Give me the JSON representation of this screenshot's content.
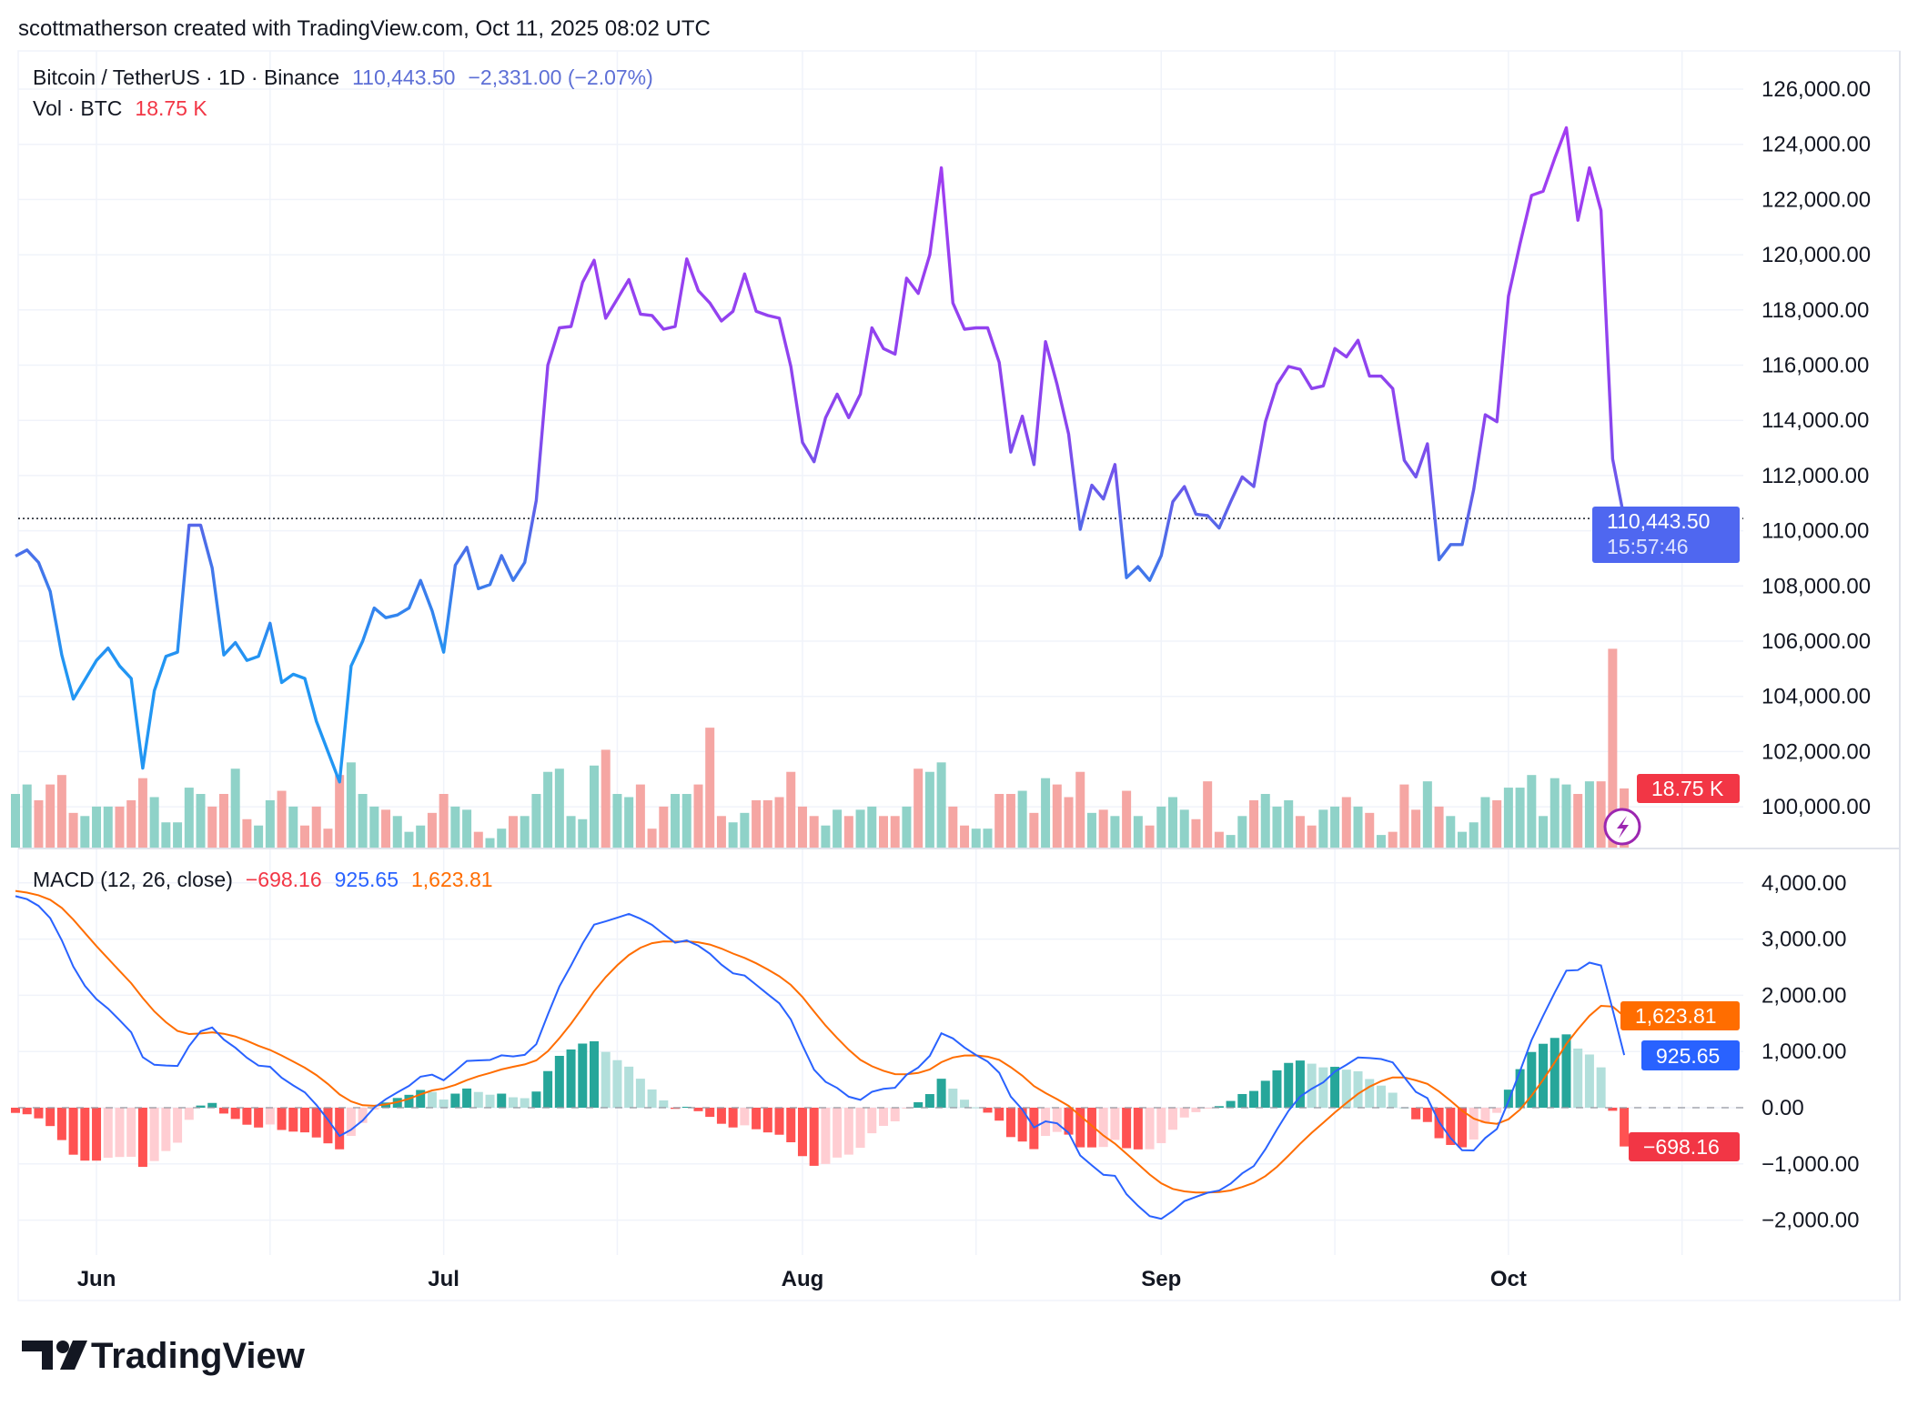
{
  "watermark": "scottmatherson created with TradingView.com, Oct 11, 2025 08:02 UTC",
  "legend": {
    "symbol": "Bitcoin / TetherUS · 1D · Binance",
    "last": "110,443.50",
    "change": "−2,331.00 (−2.07%)",
    "vol_label": "Vol · BTC",
    "vol_value": "18.75 K",
    "macd_label": "MACD (12, 26, close)",
    "macd_hist": "−698.16",
    "macd_value": "925.65",
    "macd_signal": "1,623.81"
  },
  "badges": {
    "price": "110,443.50",
    "countdown": "15:57:46",
    "volume": "18.75 K",
    "signal": "1,623.81",
    "macd": "925.65",
    "hist": "−698.16"
  },
  "logo": "TradingView",
  "colors": {
    "price_top": "#a43cf2",
    "price_bottom": "#2196f3",
    "badge_price": "#4f67f0",
    "vol_up": "#8fd2c8",
    "vol_down": "#f5a6a3",
    "macd": "#2962ff",
    "signal": "#ff6d00",
    "hist_up_strong": "#26a69a",
    "hist_up_weak": "#b2dfdb",
    "hist_down_strong": "#ff5252",
    "hist_down_weak": "#ffcdd2",
    "badge_red": "#f23645"
  },
  "chart_data": {
    "type": "line",
    "interval": "1D",
    "start_date": "2025-05-25",
    "end_date": "2025-10-11",
    "price_ticks": [
      "126,000.00",
      "124,000.00",
      "122,000.00",
      "120,000.00",
      "118,000.00",
      "116,000.00",
      "114,000.00",
      "112,000.00",
      "110,000.00",
      "108,000.00",
      "106,000.00",
      "104,000.00",
      "102,000.00",
      "100,000.00"
    ],
    "price_ylim": [
      99000,
      127000
    ],
    "macd_ticks": [
      "4,000.00",
      "3,000.00",
      "2,000.00",
      "1,000.00",
      "0.00",
      "−1,000.00",
      "−2,000.00"
    ],
    "x_ticks": [
      {
        "label": "Jun",
        "date": "2025-06-01"
      },
      {
        "label": "Jul",
        "date": "2025-07-01"
      },
      {
        "label": "Aug",
        "date": "2025-08-01"
      },
      {
        "label": "Sep",
        "date": "2025-09-01"
      },
      {
        "label": "Oct",
        "date": "2025-10-01"
      }
    ],
    "close": [
      109080,
      109300,
      108850,
      107800,
      105500,
      103900,
      104600,
      105300,
      105750,
      105100,
      104650,
      101400,
      104200,
      105450,
      105600,
      110200,
      110200,
      108650,
      105500,
      105950,
      105300,
      105450,
      106650,
      104500,
      104800,
      104650,
      103100,
      102000,
      100900,
      105100,
      106000,
      107200,
      106850,
      106950,
      107200,
      108200,
      107100,
      105600,
      108750,
      109400,
      107900,
      108050,
      109100,
      108200,
      108850,
      111100,
      116000,
      117350,
      117400,
      119000,
      119800,
      117700,
      118400,
      119100,
      117850,
      117800,
      117300,
      117400,
      119850,
      118700,
      118250,
      117600,
      117950,
      119300,
      117950,
      117800,
      117700,
      115950,
      113200,
      112500,
      114100,
      114950,
      114100,
      114950,
      117350,
      116600,
      116400,
      119150,
      118600,
      120000,
      123150,
      118250,
      117300,
      117350,
      117350,
      116100,
      112850,
      114150,
      112400,
      116850,
      115300,
      113500,
      110050,
      111650,
      111150,
      112400,
      108300,
      108700,
      108200,
      109100,
      111050,
      111600,
      110600,
      110550,
      110100,
      111050,
      111950,
      111600,
      113950,
      115300,
      115950,
      115850,
      115150,
      115250,
      116600,
      116300,
      116900,
      115600,
      115600,
      115150,
      112550,
      111950,
      113150,
      108950,
      109500,
      109500,
      111500,
      114200,
      113950,
      118500,
      120400,
      122150,
      122300,
      123500,
      124600,
      121250,
      123150,
      121600,
      112600,
      110443.5
    ],
    "volume_k": [
      17,
      20,
      15,
      20,
      23,
      11,
      10,
      13,
      13,
      13,
      15,
      22,
      16,
      8,
      8,
      19,
      17,
      13,
      17,
      25,
      9,
      7,
      15,
      18,
      13,
      7,
      13,
      6,
      23,
      27,
      17,
      13,
      12,
      10,
      5,
      7,
      11,
      17,
      13,
      12,
      5,
      3,
      6,
      10,
      10,
      17,
      24,
      25,
      10,
      9,
      26,
      31,
      17,
      16,
      20,
      6,
      13,
      17,
      17,
      20,
      38,
      10,
      8,
      11,
      15,
      15,
      16,
      24,
      13,
      10,
      7,
      12,
      10,
      12,
      13,
      10,
      10,
      13,
      25,
      24,
      27,
      13,
      7,
      6,
      6,
      17,
      17,
      18,
      11,
      22,
      20,
      16,
      24,
      11,
      12,
      10,
      18,
      10,
      7,
      13,
      16,
      12,
      9,
      21,
      5,
      4,
      10,
      15,
      17,
      13,
      15,
      10,
      7,
      12,
      13,
      16,
      13,
      11,
      4,
      5,
      20,
      12,
      21,
      13,
      10,
      5,
      8,
      16,
      15,
      19,
      19,
      23,
      10,
      22,
      20,
      17,
      21,
      21,
      63,
      18.75
    ],
    "macd_last": {
      "histogram": -698.16,
      "macd": 925.65,
      "signal": 1623.81
    }
  }
}
